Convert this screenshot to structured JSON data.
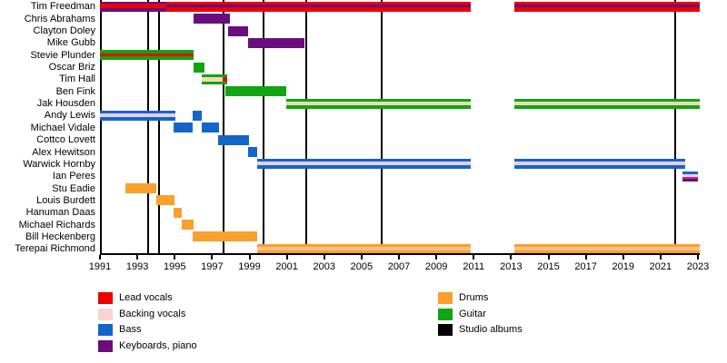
{
  "palette": {
    "lead_vocals": "#ee0000",
    "backing_vocals": "#fbd3d3",
    "bass": "#1565c8",
    "keyboards": "#6a0d7d",
    "drums": "#f9a02d",
    "guitar": "#12a412",
    "backing_on_guitar": "#ecdbb9",
    "backing_on_bass": "#e9cfe2",
    "backing_on_drums": "#fbc18a",
    "magenta": "#c02795",
    "albums": "#000000",
    "axis": "#000000",
    "text": "#000000",
    "background": "#ffffff"
  },
  "chart_data": {
    "type": "timeline",
    "x_axis": {
      "start": 1991,
      "end": 2023,
      "ticks": [
        1991,
        1993,
        1995,
        1997,
        1999,
        2001,
        2003,
        2005,
        2007,
        2009,
        2011,
        2013,
        2015,
        2017,
        2019,
        2021,
        2023
      ]
    },
    "albums": {
      "label": "Studio albums",
      "years": [
        1993.6,
        1994.15,
        1997.6,
        1999.75,
        2002.05,
        2006.1,
        2021.8
      ]
    },
    "members": [
      {
        "name": "Tim Freedman",
        "segments": [
          {
            "start": 1991.0,
            "end": 1994.55,
            "stripes": [
              [
                "keyboards",
                2.5
              ],
              [
                "lead_vocals",
                5
              ],
              [
                "keyboards",
                3.5
              ]
            ]
          },
          {
            "start": 1994.55,
            "end": 2010.85,
            "stripes": [
              [
                "lead_vocals",
                3.5
              ],
              [
                "keyboards",
                3
              ],
              [
                "lead_vocals",
                4.5
              ]
            ]
          },
          {
            "start": 2013.2,
            "end": 2023.1,
            "stripes": [
              [
                "lead_vocals",
                3.5
              ],
              [
                "keyboards",
                3
              ],
              [
                "lead_vocals",
                4.5
              ]
            ]
          }
        ]
      },
      {
        "name": "Chris Abrahams",
        "segments": [
          {
            "start": 1996.0,
            "end": 1997.95,
            "stripes": [
              [
                "keyboards",
                1
              ]
            ]
          }
        ]
      },
      {
        "name": "Clayton Doley",
        "segments": [
          {
            "start": 1997.85,
            "end": 1998.95,
            "stripes": [
              [
                "keyboards",
                1
              ]
            ]
          }
        ]
      },
      {
        "name": "Mike Gubb",
        "segments": [
          {
            "start": 1998.95,
            "end": 2001.95,
            "stripes": [
              [
                "keyboards",
                1
              ]
            ]
          }
        ]
      },
      {
        "name": "Stevie Plunder",
        "segments": [
          {
            "start": 1991.0,
            "end": 1996.0,
            "stripes": [
              [
                "guitar",
                3.5
              ],
              [
                "lead_vocals",
                3.5
              ],
              [
                "guitar",
                4
              ]
            ]
          }
        ]
      },
      {
        "name": "Oscar Briz",
        "segments": [
          {
            "start": 1996.0,
            "end": 1996.6,
            "stripes": [
              [
                "guitar",
                1
              ]
            ]
          }
        ]
      },
      {
        "name": "Tim Hall",
        "segments": [
          {
            "start": 1996.45,
            "end": 1997.55,
            "stripes": [
              [
                "guitar",
                3
              ],
              [
                "backing_on_guitar",
                5
              ],
              [
                "guitar",
                3
              ]
            ]
          },
          {
            "start": 1997.55,
            "end": 1997.8,
            "stripes": [
              [
                "guitar",
                3
              ],
              [
                "lead_vocals",
                5
              ],
              [
                "guitar",
                3
              ]
            ]
          }
        ]
      },
      {
        "name": "Ben Fink",
        "segments": [
          {
            "start": 1997.7,
            "end": 2000.95,
            "stripes": [
              [
                "guitar",
                1
              ]
            ]
          }
        ]
      },
      {
        "name": "Jak Housden",
        "segments": [
          {
            "start": 2000.95,
            "end": 2010.85,
            "stripes": [
              [
                "guitar",
                3
              ],
              [
                "backing_on_guitar",
                4
              ],
              [
                "guitar",
                4
              ]
            ]
          },
          {
            "start": 2013.2,
            "end": 2023.1,
            "stripes": [
              [
                "guitar",
                3
              ],
              [
                "backing_on_guitar",
                4
              ],
              [
                "guitar",
                4
              ]
            ]
          }
        ]
      },
      {
        "name": "Andy Lewis",
        "segments": [
          {
            "start": 1991.0,
            "end": 1995.05,
            "stripes": [
              [
                "bass",
                3
              ],
              [
                "backing_on_bass",
                4
              ],
              [
                "bass",
                4
              ]
            ]
          },
          {
            "start": 1995.95,
            "end": 1996.45,
            "stripes": [
              [
                "bass",
                1
              ]
            ]
          }
        ]
      },
      {
        "name": "Michael Vidale",
        "segments": [
          {
            "start": 1994.95,
            "end": 1995.95,
            "stripes": [
              [
                "bass",
                1
              ]
            ]
          },
          {
            "start": 1996.45,
            "end": 1997.35,
            "stripes": [
              [
                "bass",
                1
              ]
            ]
          }
        ]
      },
      {
        "name": "Cottco Lovett",
        "segments": [
          {
            "start": 1997.3,
            "end": 1999.0,
            "stripes": [
              [
                "bass",
                1
              ]
            ]
          }
        ]
      },
      {
        "name": "Alex Hewitson",
        "segments": [
          {
            "start": 1998.95,
            "end": 1999.4,
            "stripes": [
              [
                "bass",
                1
              ]
            ]
          }
        ]
      },
      {
        "name": "Warwick Hornby",
        "segments": [
          {
            "start": 1999.4,
            "end": 2010.85,
            "stripes": [
              [
                "bass",
                3
              ],
              [
                "backing_on_bass",
                4
              ],
              [
                "bass",
                4
              ]
            ]
          },
          {
            "start": 2013.2,
            "end": 2022.3,
            "stripes": [
              [
                "bass",
                3
              ],
              [
                "backing_on_bass",
                4
              ],
              [
                "bass",
                4
              ]
            ]
          }
        ]
      },
      {
        "name": "Ian Peres",
        "segments": [
          {
            "start": 2022.15,
            "end": 2023.0,
            "stripes": [
              [
                "bass",
                3
              ],
              [
                "backing_vocals",
                3
              ],
              [
                "magenta",
                2.5
              ],
              [
                "keyboards",
                2.5
              ]
            ]
          }
        ]
      },
      {
        "name": "Stu Eadie",
        "segments": [
          {
            "start": 1992.35,
            "end": 1994.0,
            "stripes": [
              [
                "drums",
                1
              ]
            ]
          }
        ]
      },
      {
        "name": "Louis Burdett",
        "segments": [
          {
            "start": 1994.0,
            "end": 1995.0,
            "stripes": [
              [
                "drums",
                1
              ]
            ]
          }
        ]
      },
      {
        "name": "Hanuman Daas",
        "segments": [
          {
            "start": 1994.95,
            "end": 1995.4,
            "stripes": [
              [
                "drums",
                1
              ]
            ]
          }
        ]
      },
      {
        "name": "Michael Richards",
        "segments": [
          {
            "start": 1995.4,
            "end": 1996.0,
            "stripes": [
              [
                "drums",
                1
              ]
            ]
          }
        ]
      },
      {
        "name": "Bill Heckenberg",
        "segments": [
          {
            "start": 1995.95,
            "end": 1999.4,
            "stripes": [
              [
                "drums",
                1
              ]
            ]
          }
        ]
      },
      {
        "name": "Terepai Richmond",
        "segments": [
          {
            "start": 1999.4,
            "end": 2010.85,
            "stripes": [
              [
                "drums",
                3
              ],
              [
                "backing_on_drums",
                4
              ],
              [
                "drums",
                4
              ]
            ]
          },
          {
            "start": 2013.2,
            "end": 2023.1,
            "stripes": [
              [
                "drums",
                3
              ],
              [
                "backing_on_drums",
                4
              ],
              [
                "drums",
                4
              ]
            ]
          }
        ]
      }
    ]
  },
  "legend": {
    "column_break": 4,
    "items": [
      {
        "label": "Lead vocals",
        "color_key": "lead_vocals"
      },
      {
        "label": "Backing vocals",
        "color_key": "backing_vocals"
      },
      {
        "label": "Bass",
        "color_key": "bass"
      },
      {
        "label": "Keyboards, piano",
        "color_key": "keyboards"
      },
      {
        "label": "Drums",
        "color_key": "drums"
      },
      {
        "label": "Guitar",
        "color_key": "guitar"
      },
      {
        "label": "Studio albums",
        "color_key": "albums"
      }
    ]
  }
}
